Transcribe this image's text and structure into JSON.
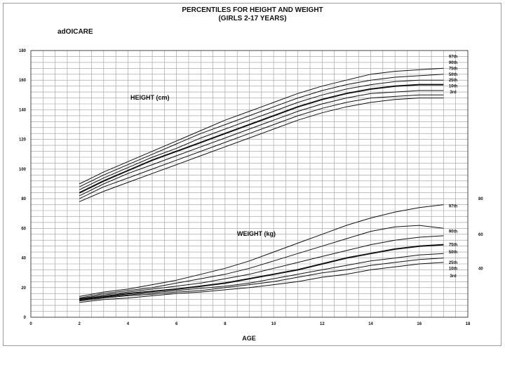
{
  "header": {
    "title_line1": "PERCENTILES FOR HEIGHT AND WEIGHT",
    "title_line2": "(GIRLS 2-17 YEARS)",
    "brand": "adOICARE"
  },
  "chart_data": {
    "type": "line",
    "title": "PERCENTILES FOR HEIGHT AND WEIGHT",
    "subtitle": "(GIRLS 2-17 YEARS)",
    "xlabel": "AGE",
    "xlim": [
      0,
      18
    ],
    "ylim": [
      0,
      180
    ],
    "x_ticks": [
      "0",
      "2",
      "4",
      "6",
      "8",
      "10",
      "12",
      "14",
      "16",
      "18"
    ],
    "y_ticks": [
      "0",
      "20",
      "40",
      "60",
      "80",
      "100",
      "120",
      "140",
      "160",
      "180"
    ],
    "right_axis_labels": [
      {
        "text": "80",
        "y": 80
      },
      {
        "text": "60",
        "y": 56
      },
      {
        "text": "40",
        "y": 33
      }
    ],
    "grid": true,
    "x": [
      2,
      3,
      4,
      5,
      6,
      7,
      8,
      9,
      10,
      11,
      12,
      13,
      14,
      15,
      16,
      17
    ],
    "height_label": "HEIGHT (cm)",
    "weight_label": "WEIGHT (kg)",
    "height_series": [
      {
        "name": "97th",
        "emphasis": false,
        "values": [
          90,
          98,
          105,
          112,
          119,
          126,
          133,
          139,
          145,
          151,
          156,
          160,
          164,
          166,
          167,
          168
        ]
      },
      {
        "name": "90th",
        "emphasis": false,
        "values": [
          88,
          96,
          103,
          110,
          117,
          124,
          130,
          136,
          142,
          148,
          153,
          157,
          160,
          162,
          163,
          164
        ]
      },
      {
        "name": "75th",
        "emphasis": false,
        "values": [
          86,
          94,
          101,
          108,
          114,
          121,
          127,
          133,
          139,
          145,
          150,
          154,
          157,
          159,
          160,
          160
        ]
      },
      {
        "name": "50th",
        "emphasis": true,
        "values": [
          84,
          92,
          99,
          106,
          112,
          118,
          124,
          130,
          136,
          142,
          147,
          151,
          154,
          156,
          157,
          157
        ]
      },
      {
        "name": "25th",
        "emphasis": false,
        "values": [
          82,
          90,
          97,
          103,
          109,
          115,
          121,
          127,
          133,
          139,
          144,
          148,
          151,
          152,
          153,
          153
        ]
      },
      {
        "name": "10th",
        "emphasis": false,
        "values": [
          80,
          88,
          94,
          100,
          106,
          112,
          118,
          124,
          130,
          136,
          141,
          145,
          148,
          149,
          150,
          150
        ]
      },
      {
        "name": "3rd",
        "emphasis": false,
        "values": [
          78,
          85,
          91,
          97,
          103,
          109,
          115,
          121,
          127,
          133,
          138,
          142,
          145,
          147,
          148,
          148
        ]
      }
    ],
    "weight_series": [
      {
        "name": "97th",
        "emphasis": false,
        "values": [
          14,
          17,
          19,
          22,
          25,
          29,
          33,
          38,
          44,
          50,
          56,
          62,
          67,
          71,
          74,
          76
        ]
      },
      {
        "name": "90th",
        "emphasis": false,
        "values": [
          13,
          16,
          18,
          20,
          23,
          26,
          29,
          33,
          38,
          43,
          48,
          53,
          58,
          61,
          62,
          60
        ]
      },
      {
        "name": "75th",
        "emphasis": false,
        "values": [
          12.5,
          15,
          17,
          19,
          21,
          23,
          26,
          29,
          33,
          37,
          41,
          45,
          49,
          52,
          54,
          55
        ]
      },
      {
        "name": "50th",
        "emphasis": true,
        "values": [
          12,
          14,
          16,
          17.5,
          19,
          21,
          23,
          26,
          29,
          32,
          36,
          40,
          43,
          46,
          48,
          49
        ]
      },
      {
        "name": "25th",
        "emphasis": false,
        "values": [
          11.5,
          13.5,
          15,
          16.5,
          18,
          19.5,
          21,
          23,
          26,
          29,
          32,
          35,
          38,
          40,
          42,
          43
        ]
      },
      {
        "name": "10th",
        "emphasis": false,
        "values": [
          11,
          13,
          14.5,
          15.5,
          17,
          18,
          20,
          22,
          24,
          27,
          30,
          32,
          35,
          37,
          39,
          40
        ]
      },
      {
        "name": "3rd",
        "emphasis": false,
        "values": [
          10,
          12,
          13,
          14.5,
          16,
          17,
          18.5,
          20,
          22,
          24,
          27,
          29,
          32,
          34,
          36,
          37
        ]
      }
    ],
    "height_end_labels": [
      {
        "text": "97th",
        "y": 176
      },
      {
        "text": "90th",
        "y": 172
      },
      {
        "text": "75th",
        "y": 168
      },
      {
        "text": "50th",
        "y": 164
      },
      {
        "text": "25th",
        "y": 160
      },
      {
        "text": "10th",
        "y": 156
      },
      {
        "text": "3rd",
        "y": 152
      }
    ],
    "weight_end_labels": [
      {
        "text": "97th",
        "y": 75
      },
      {
        "text": "90th",
        "y": 58
      },
      {
        "text": "75th",
        "y": 49
      },
      {
        "text": "50th",
        "y": 44
      },
      {
        "text": "25th",
        "y": 37
      },
      {
        "text": "10th",
        "y": 33
      },
      {
        "text": "3rd",
        "y": 28
      }
    ]
  }
}
